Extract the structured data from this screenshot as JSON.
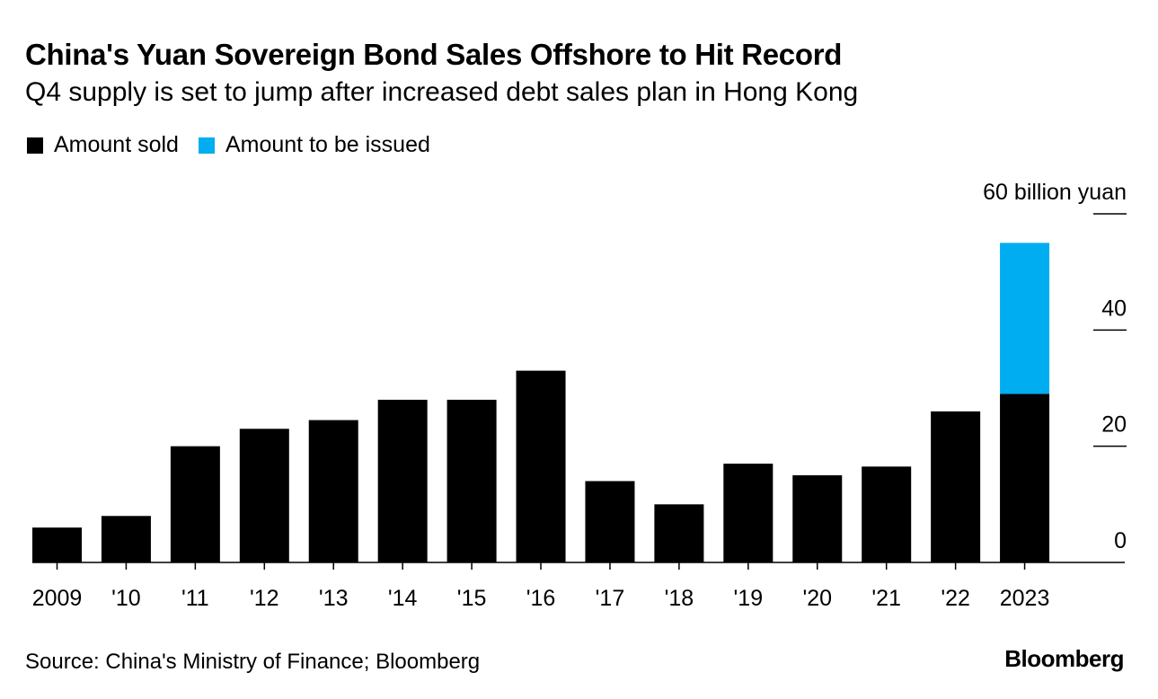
{
  "colors": {
    "sold": "#000000",
    "to_be_issued": "#00adf0"
  },
  "brand": "Bloomberg",
  "chart_data": {
    "type": "bar",
    "stacked": true,
    "title": "China's Yuan Sovereign Bond Sales Offshore to Hit Record",
    "subtitle": "Q4 supply is set to jump after increased debt sales plan in Hong Kong",
    "categories": [
      "2009",
      "'10",
      "'11",
      "'12",
      "'13",
      "'14",
      "'15",
      "'16",
      "'17",
      "'18",
      "'19",
      "'20",
      "'21",
      "'22",
      "2023"
    ],
    "series": [
      {
        "name": "Amount sold",
        "values": [
          6,
          8,
          20,
          23,
          24.5,
          28,
          28,
          33,
          14,
          10,
          17,
          15,
          16.5,
          26,
          29
        ]
      },
      {
        "name": "Amount to be issued",
        "values": [
          0,
          0,
          0,
          0,
          0,
          0,
          0,
          0,
          0,
          0,
          0,
          0,
          0,
          0,
          26
        ]
      }
    ],
    "yaxis": {
      "ticks": [
        0,
        20,
        40,
        60
      ],
      "tick_labels": [
        "0",
        "20",
        "40",
        "60 billion yuan"
      ],
      "ylim": [
        0,
        60
      ],
      "position": "right"
    },
    "xlabel": "",
    "ylabel": "billion yuan",
    "legend": "top-left",
    "source": "Source: China's Ministry of Finance; Bloomberg"
  }
}
